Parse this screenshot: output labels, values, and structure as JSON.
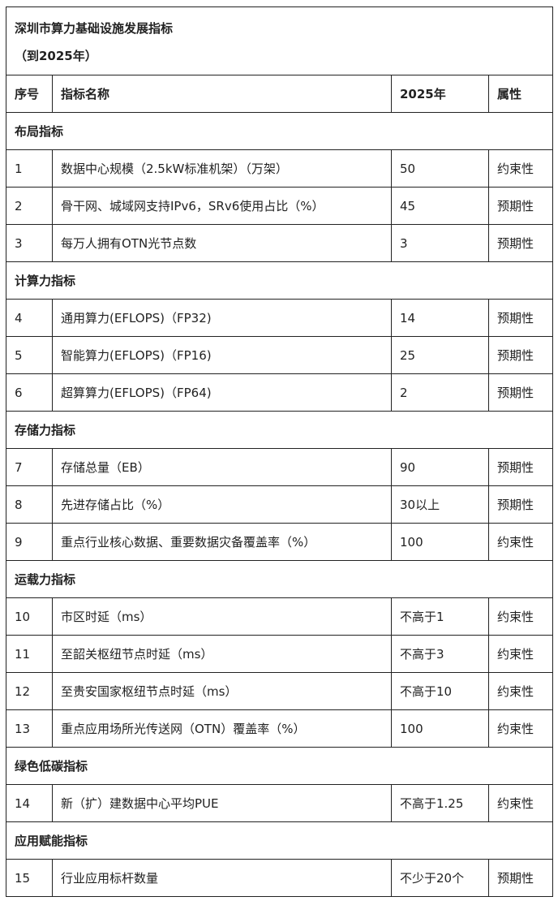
{
  "title": {
    "line1": "深圳市算力基础设施发展指标",
    "line2": "（到2025年）"
  },
  "header": {
    "index": "序号",
    "name": "指标名称",
    "year": "2025年",
    "attr": "属性"
  },
  "sections": [
    {
      "title": "布局指标",
      "rows": [
        {
          "index": "1",
          "name": "数据中心规模（2.5kW标准机架）（万架）",
          "value": "50",
          "attr": "约束性"
        },
        {
          "index": "2",
          "name": "骨干网、城域网支持IPv6，SRv6使用占比（%）",
          "value": "45",
          "attr": "预期性"
        },
        {
          "index": "3",
          "name": "每万人拥有OTN光节点数",
          "value": "3",
          "attr": "预期性"
        }
      ]
    },
    {
      "title": "计算力指标",
      "rows": [
        {
          "index": "4",
          "name": "通用算力(EFLOPS)（FP32)",
          "value": "14",
          "attr": "预期性"
        },
        {
          "index": "5",
          "name": "智能算力(EFLOPS)（FP16)",
          "value": "25",
          "attr": "预期性"
        },
        {
          "index": "6",
          "name": "超算算力(EFLOPS)（FP64)",
          "value": "2",
          "attr": "预期性"
        }
      ]
    },
    {
      "title": "存储力指标",
      "rows": [
        {
          "index": "7",
          "name": "存储总量（EB）",
          "value": "90",
          "attr": "预期性"
        },
        {
          "index": "8",
          "name": "先进存储占比（%）",
          "value": "30以上",
          "attr": "预期性"
        },
        {
          "index": "9",
          "name": "重点行业核心数据、重要数据灾备覆盖率（%）",
          "value": "100",
          "attr": "约束性"
        }
      ]
    },
    {
      "title": "运载力指标",
      "rows": [
        {
          "index": "10",
          "name": "市区时延（ms）",
          "value": "不高于1",
          "attr": "约束性"
        },
        {
          "index": "11",
          "name": "至韶关枢纽节点时延（ms）",
          "value": "不高于3",
          "attr": "约束性"
        },
        {
          "index": "12",
          "name": "至贵安国家枢纽节点时延（ms）",
          "value": "不高于10",
          "attr": "约束性"
        },
        {
          "index": "13",
          "name": "重点应用场所光传送网（OTN）覆盖率（%）",
          "value": "100",
          "attr": "约束性"
        }
      ]
    },
    {
      "title": "绿色低碳指标",
      "rows": [
        {
          "index": "14",
          "name": "新（扩）建数据中心平均PUE",
          "value": "不高于1.25",
          "attr": "约束性"
        }
      ]
    },
    {
      "title": "应用赋能指标",
      "rows": [
        {
          "index": "15",
          "name": "行业应用标杆数量",
          "value": "不少于20个",
          "attr": "预期性"
        }
      ]
    }
  ]
}
